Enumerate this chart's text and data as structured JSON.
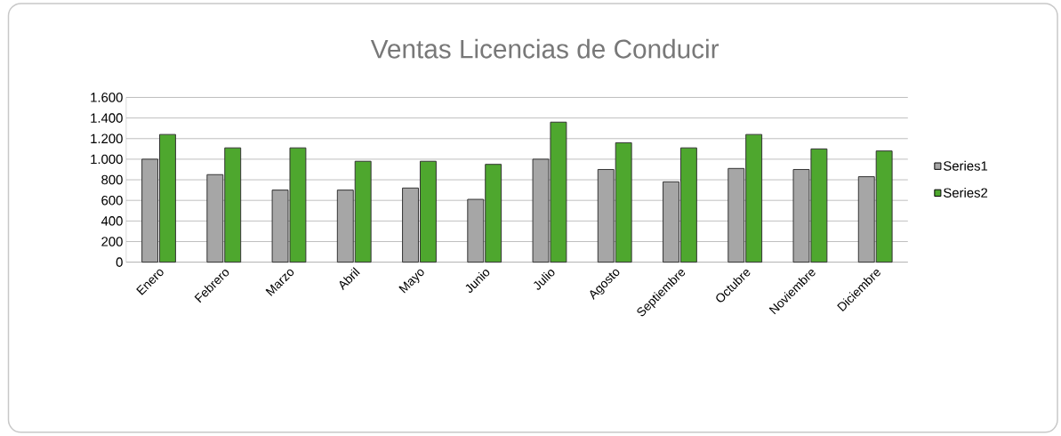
{
  "chart_data": {
    "type": "bar",
    "title": "Ventas Licencias de Conducir",
    "categories": [
      "Enero",
      "Febrero",
      "Marzo",
      "Abril",
      "Mayo",
      "Junio",
      "Julio",
      "Agosto",
      "Septiembre",
      "Octubre",
      "Noviembre",
      "Diciembre"
    ],
    "series": [
      {
        "name": "Series1",
        "color": "#a6a6a6",
        "values": [
          1000,
          850,
          700,
          700,
          720,
          610,
          1000,
          900,
          780,
          910,
          900,
          830
        ]
      },
      {
        "name": "Series2",
        "color": "#4ea72e",
        "values": [
          1240,
          1110,
          1110,
          980,
          980,
          950,
          1360,
          1160,
          1110,
          1240,
          1100,
          1080
        ]
      }
    ],
    "ylim": [
      0,
      1600
    ],
    "yticks": [
      0,
      200,
      400,
      600,
      800,
      {
        "value": 1000,
        "label": "1.000"
      },
      {
        "value": 1200,
        "label": "1.200"
      },
      {
        "value": 1400,
        "label": "1.400"
      },
      {
        "value": 1600,
        "label": "1.600"
      }
    ],
    "grid": "y",
    "legend": "right"
  }
}
